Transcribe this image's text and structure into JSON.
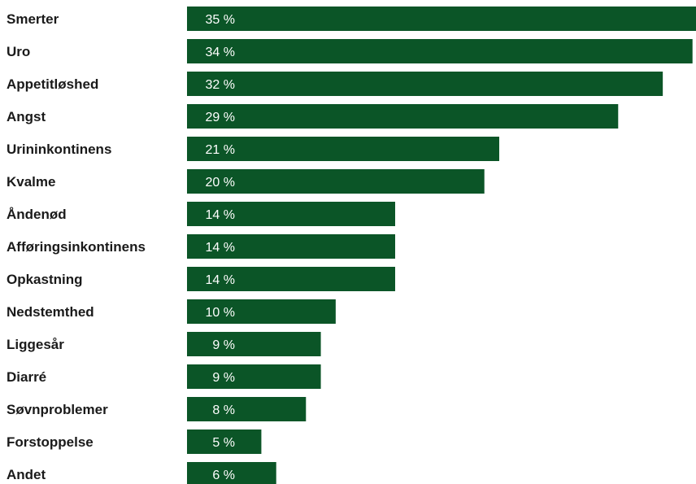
{
  "chart_data": {
    "type": "bar",
    "orientation": "horizontal",
    "categories": [
      "Smerter",
      "Uro",
      "Appetitløshed",
      "Angst",
      "Urininkontinens",
      "Kvalme",
      "Åndenød",
      "Afføringsinkontinens",
      "Opkastning",
      "Nedstemthed",
      "Liggesår",
      "Diarré",
      "Søvnproblemer",
      "Forstoppelse",
      "Andet"
    ],
    "values": [
      35,
      34,
      32,
      29,
      21,
      20,
      14,
      14,
      14,
      10,
      9,
      9,
      8,
      5,
      6
    ],
    "value_labels": [
      "35 %",
      "34 %",
      "32 %",
      "29 %",
      "21 %",
      "20 %",
      "14 %",
      "14 %",
      "14 %",
      "10 %",
      "9 %",
      "9 %",
      "8 %",
      "5 %",
      "6 %"
    ],
    "xlim": [
      0,
      35
    ],
    "grid": false,
    "bar_color": "#0b5527"
  }
}
